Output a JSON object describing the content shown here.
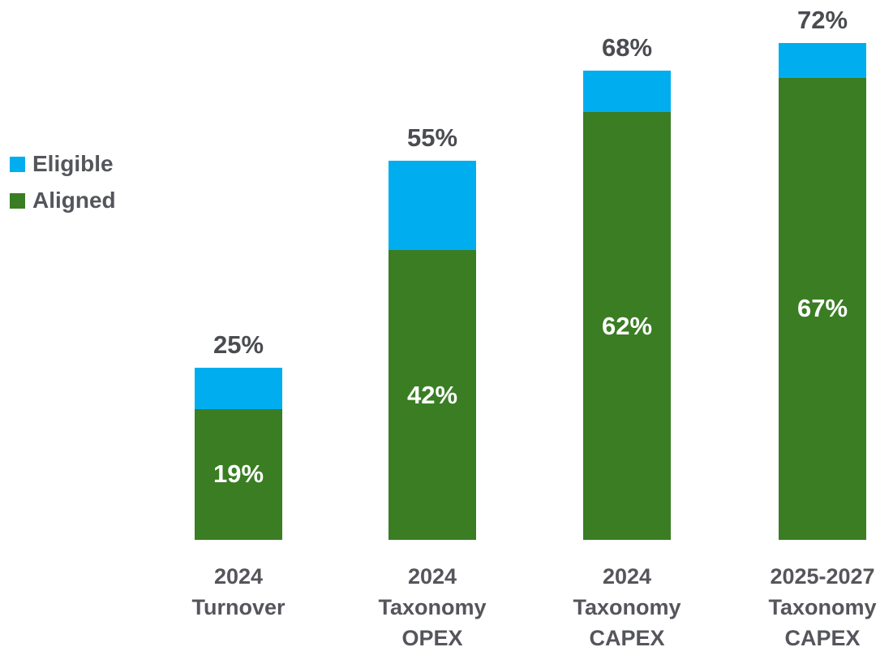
{
  "chart_data": {
    "type": "bar",
    "stacked": true,
    "title": "",
    "xlabel": "",
    "ylabel": "",
    "ylim": [
      0,
      78
    ],
    "grid": false,
    "legend_position": "left",
    "value_unit": "%",
    "categories": [
      "2024 Turnover",
      "2024 Taxonomy OPEX",
      "2024 Taxonomy CAPEX",
      "2025-2027 Taxonomy CAPEX"
    ],
    "series": [
      {
        "name": "Aligned",
        "color": "#3A7D23",
        "values": [
          19,
          42,
          62,
          67
        ]
      },
      {
        "name": "Eligible",
        "color": "#00AEEF",
        "values": [
          6,
          13,
          6,
          5
        ],
        "note_totals": [
          25,
          55,
          68,
          72
        ]
      }
    ],
    "legend": [
      {
        "label": "Eligible",
        "color": "#00AEEF"
      },
      {
        "label": "Aligned",
        "color": "#3A7D23"
      }
    ],
    "bars": [
      {
        "category_lines": [
          "2024",
          "Turnover"
        ],
        "eligible_total": 25,
        "aligned": 19,
        "eligible_segment": 6,
        "total_label": "25%",
        "aligned_label": "19%"
      },
      {
        "category_lines": [
          "2024",
          "Taxonomy",
          "OPEX"
        ],
        "eligible_total": 55,
        "aligned": 42,
        "eligible_segment": 13,
        "total_label": "55%",
        "aligned_label": "42%"
      },
      {
        "category_lines": [
          "2024",
          "Taxonomy",
          "CAPEX"
        ],
        "eligible_total": 68,
        "aligned": 62,
        "eligible_segment": 6,
        "total_label": "68%",
        "aligned_label": "62%"
      },
      {
        "category_lines": [
          "2025-2027",
          "Taxonomy",
          "CAPEX"
        ],
        "eligible_total": 72,
        "aligned": 67,
        "eligible_segment": 5,
        "total_label": "72%",
        "aligned_label": "67%"
      }
    ]
  },
  "colors": {
    "eligible": "#00AEEF",
    "aligned": "#3A7D23",
    "text_dark": "#54565B",
    "text_inside_bar": "#FFFFFF",
    "background": "#FFFFFF"
  }
}
